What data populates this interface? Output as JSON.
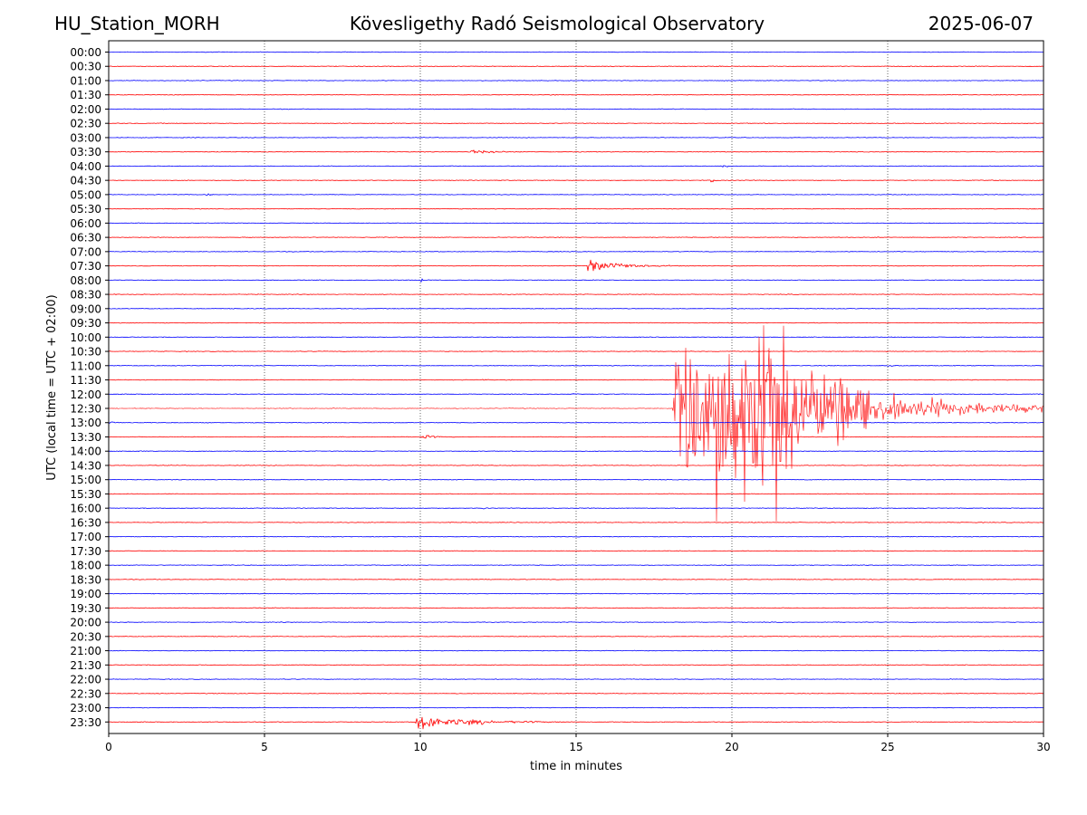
{
  "header": {
    "station": "HU_Station_MORH",
    "observatory": "Kövesligethy Radó Seismological Observatory",
    "date": "2025-06-07"
  },
  "chart_data": {
    "type": "line",
    "title": "Kövesligethy Radó Seismological Observatory",
    "xlabel": "time in minutes",
    "ylabel": "UTC (local time = UTC + 02:00)",
    "xlim": [
      0,
      30
    ],
    "x_ticks": [
      0,
      5,
      10,
      15,
      20,
      25,
      30
    ],
    "grid": "vertical dotted at 5-minute intervals",
    "line_colors": [
      "#0000ff",
      "#ff0000"
    ],
    "rows": [
      "00:00",
      "00:30",
      "01:00",
      "01:30",
      "02:00",
      "02:30",
      "03:00",
      "03:30",
      "04:00",
      "04:30",
      "05:00",
      "05:30",
      "06:00",
      "06:30",
      "07:00",
      "07:30",
      "08:00",
      "08:30",
      "09:00",
      "09:30",
      "10:00",
      "10:30",
      "11:00",
      "11:30",
      "12:00",
      "12:30",
      "13:00",
      "13:30",
      "14:00",
      "14:30",
      "15:00",
      "15:30",
      "16:00",
      "16:30",
      "17:00",
      "17:30",
      "18:00",
      "18:30",
      "19:00",
      "19:30",
      "20:00",
      "20:30",
      "21:00",
      "21:30",
      "22:00",
      "22:30",
      "23:00",
      "23:30"
    ],
    "events": [
      {
        "row": "03:30",
        "start_min": 11.6,
        "duration_min": 2.0,
        "amplitude_rows": 0.35
      },
      {
        "row": "04:00",
        "start_min": 19.7,
        "duration_min": 0.6,
        "amplitude_rows": 0.15
      },
      {
        "row": "04:30",
        "start_min": 19.3,
        "duration_min": 0.8,
        "amplitude_rows": 0.2
      },
      {
        "row": "05:00",
        "start_min": 3.1,
        "duration_min": 0.4,
        "amplitude_rows": 0.3
      },
      {
        "row": "07:30",
        "start_min": 15.35,
        "duration_min": 3.5,
        "amplitude_rows": 0.65
      },
      {
        "row": "08:00",
        "start_min": 10.0,
        "duration_min": 0.9,
        "amplitude_rows": 0.15
      },
      {
        "row": "11:00",
        "start_min": 25.0,
        "duration_min": 0.6,
        "amplitude_rows": 0.2
      },
      {
        "row": "11:30",
        "start_min": 12.0,
        "duration_min": 0.5,
        "amplitude_rows": 0.1
      },
      {
        "row": "12:00",
        "start_min": 14.8,
        "duration_min": 0.5,
        "amplitude_rows": 0.25
      },
      {
        "row": "12:30",
        "start_min": 18.1,
        "duration_min": 11.9,
        "amplitude_rows": 9.0,
        "mainshock": true
      },
      {
        "row": "13:00",
        "start_min": 0.0,
        "duration_min": 0.8,
        "amplitude_rows": 0.15
      },
      {
        "row": "13:30",
        "start_min": 10.05,
        "duration_min": 0.8,
        "amplitude_rows": 0.4
      },
      {
        "row": "16:00",
        "start_min": 12.0,
        "duration_min": 0.6,
        "amplitude_rows": 0.12
      },
      {
        "row": "23:30",
        "start_min": 9.85,
        "duration_min": 5.0,
        "amplitude_rows": 0.8
      }
    ]
  }
}
